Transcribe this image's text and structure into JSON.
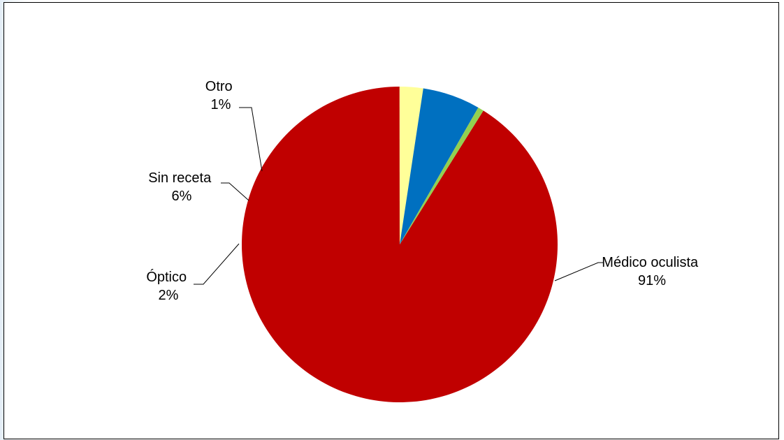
{
  "chart_data": {
    "type": "pie",
    "title": "",
    "slices": [
      {
        "name": "Médico oculista",
        "percent_label": "91%",
        "value": 91.1,
        "color": "#c00000"
      },
      {
        "name": "Óptico",
        "percent_label": "2%",
        "value": 2.4,
        "color": "#ffff99"
      },
      {
        "name": "Sin receta",
        "percent_label": "6%",
        "value": 5.9,
        "color": "#0070c0"
      },
      {
        "name": "Otro",
        "percent_label": "1%",
        "value": 0.6,
        "color": "#92d050"
      }
    ],
    "legend": "none",
    "labels": "outside-with-leader-lines"
  }
}
